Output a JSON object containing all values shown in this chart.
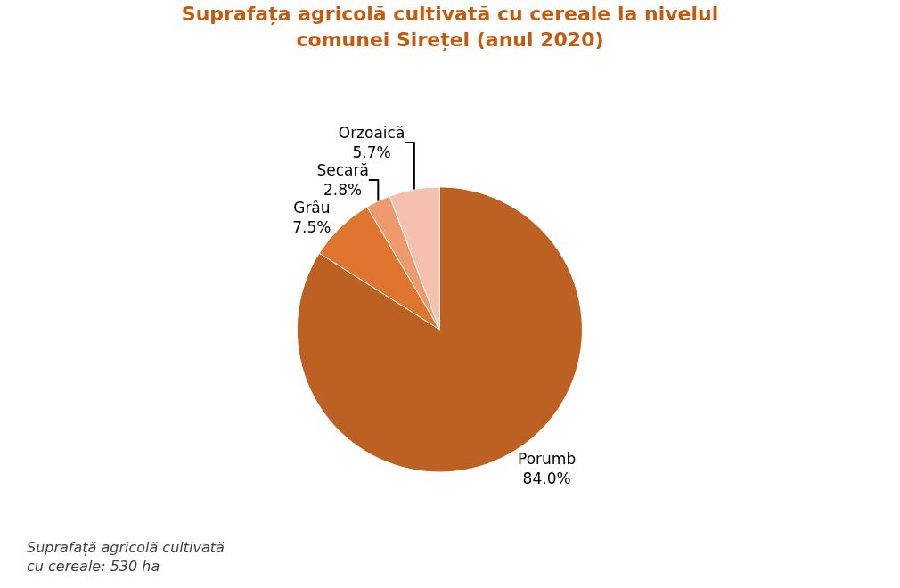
{
  "chart_data": {
    "type": "pie",
    "title": "Suprafața agricolă cultivată cu cereale la nivelul\ncomunei Sirețel (anul 2020)",
    "categories": [
      "Porumb",
      "Grâu",
      "Secară",
      "Orzoaică"
    ],
    "values": [
      84.0,
      7.5,
      2.8,
      5.7
    ],
    "value_labels": [
      "84.0%",
      "7.5%",
      "2.8%",
      "5.7%"
    ],
    "colors": [
      "#bc6023",
      "#e07530",
      "#ef9a6e",
      "#f5c0ae"
    ],
    "annotations": [
      "Suprafață agricolă cultivată\ncu cereale: 530 ha"
    ],
    "legend": false
  }
}
